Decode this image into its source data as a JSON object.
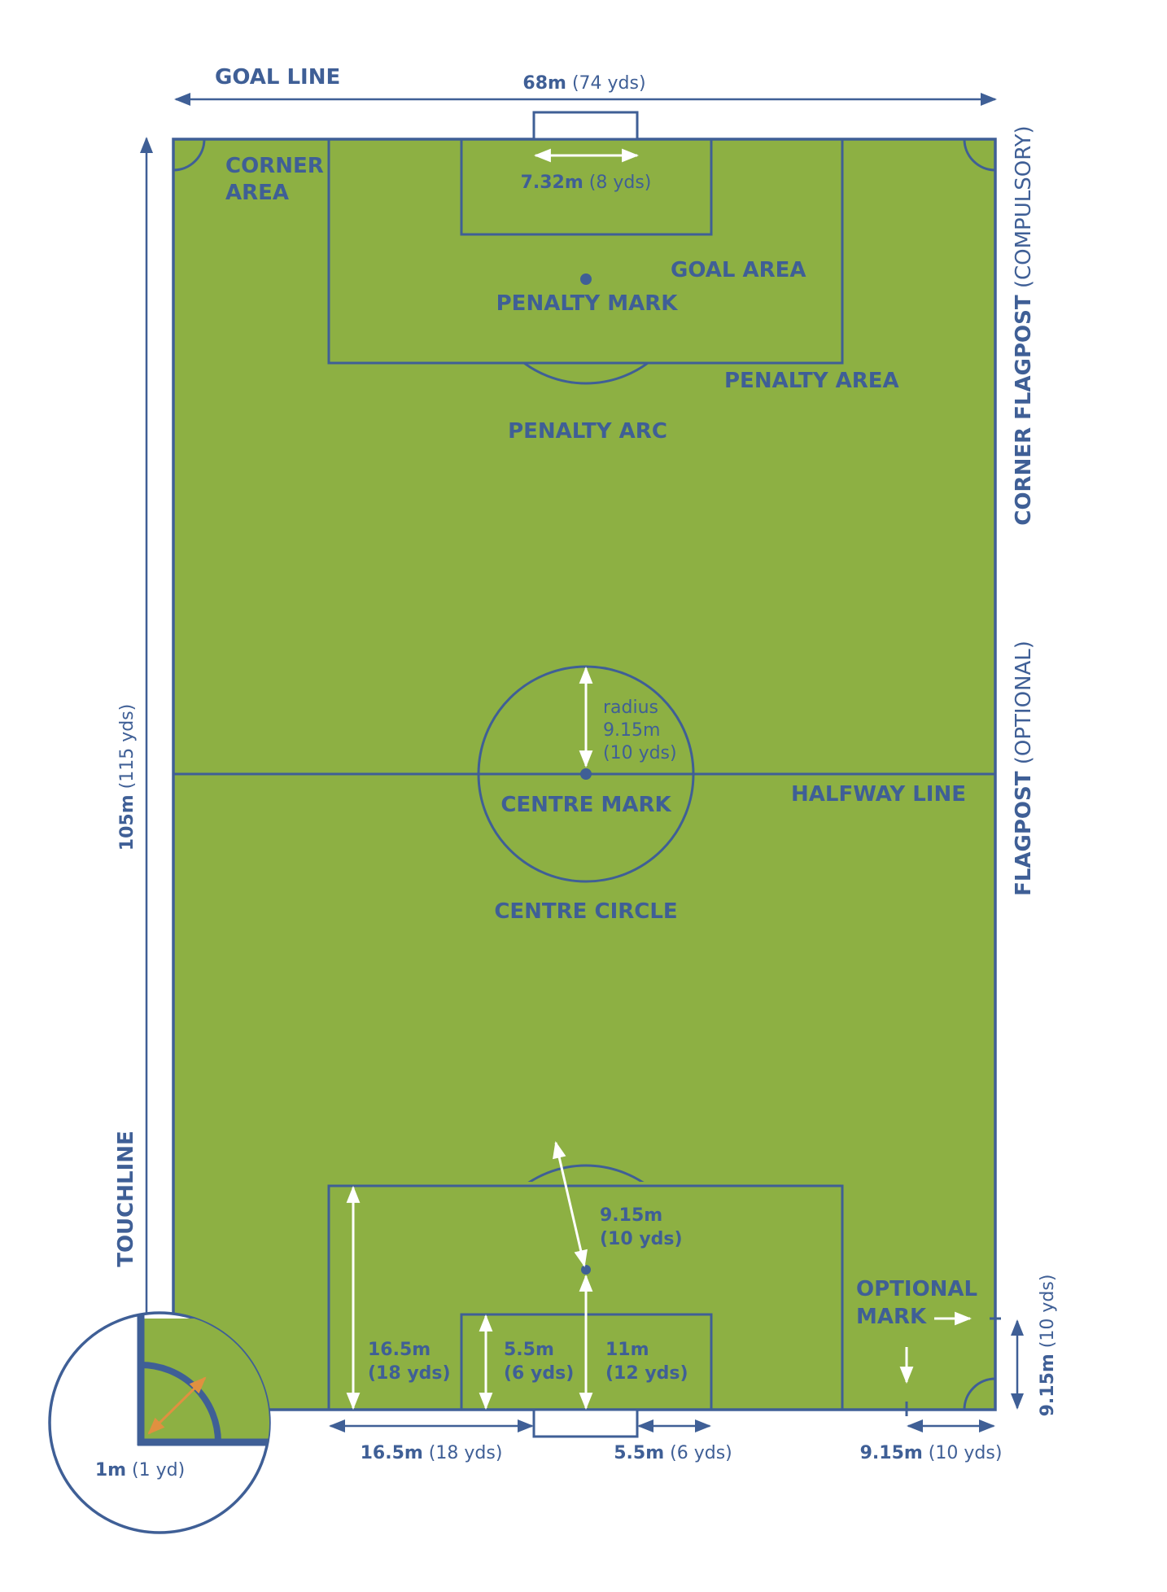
{
  "colors": {
    "pitch": "#8db043",
    "lines": "#3f5f96",
    "measure_arrows": "#ffffff",
    "corner_arrow": "#e09040"
  },
  "labels": {
    "goal_line": "GOAL LINE",
    "corner_area": [
      "CORNER",
      "AREA"
    ],
    "goal_area": "GOAL AREA",
    "penalty_mark": "PENALTY MARK",
    "penalty_area": "PENALTY AREA",
    "penalty_arc": "PENALTY ARC",
    "centre_mark": "CENTRE MARK",
    "halfway_line": "HALFWAY LINE",
    "centre_circle": "CENTRE CIRCLE",
    "touchline": "TOUCHLINE",
    "optional_mark": [
      "OPTIONAL",
      "MARK"
    ],
    "corner_flagpost": {
      "bold": "CORNER FLAGPOST",
      "regular": " (COMPULSORY)"
    },
    "flagpost": {
      "bold": "FLAGPOST",
      "regular": " (OPTIONAL)"
    }
  },
  "measurements": {
    "width": {
      "metric": "68m",
      "imperial": " (74 yds)"
    },
    "length": {
      "metric": "105m",
      "imperial": " (115 yds)"
    },
    "goal_width": {
      "metric": "7.32m",
      "imperial": " (8 yds)"
    },
    "centre_radius": [
      "radius",
      "9.15m",
      "(10 yds)"
    ],
    "arc_radius": [
      "9.15m",
      "(10 yds)"
    ],
    "penalty_depth": [
      "16.5m",
      "(18 yds)"
    ],
    "goal_area_depth": [
      "5.5m",
      "(6 yds)"
    ],
    "penalty_mark_distance": [
      "11m",
      "(12 yds)"
    ],
    "bottom_penalty": {
      "metric": "16.5m",
      "imperial": " (18 yds)"
    },
    "bottom_goal_area": {
      "metric": "5.5m",
      "imperial": " (6 yds)"
    },
    "bottom_optional": {
      "metric": "9.15m",
      "imperial": " (10 yds)"
    },
    "side_optional": {
      "metric": "9.15m",
      "imperial": " (10 yds)"
    },
    "corner_radius": {
      "metric": "1m",
      "imperial": " (1 yd)"
    }
  }
}
